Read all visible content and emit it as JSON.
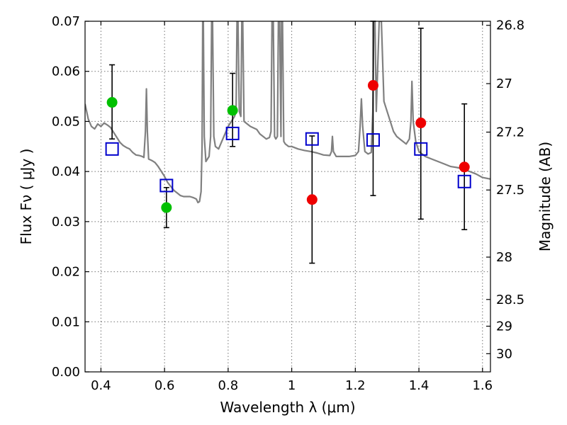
{
  "chart_data": {
    "type": "scatter",
    "xlabel": "Wavelength  λ (μm)",
    "ylabel": "Flux  Fν  ( μJy )",
    "y2label": "Magnitude (AB)",
    "xlim": [
      0.35,
      1.625
    ],
    "ylim": [
      0.0,
      0.07
    ],
    "grid": true,
    "x_ticks": [
      {
        "value": 0.4,
        "label": "0.4"
      },
      {
        "value": 0.6,
        "label": "0.6"
      },
      {
        "value": 0.8,
        "label": "0.8"
      },
      {
        "value": 1.0,
        "label": "1"
      },
      {
        "value": 1.2,
        "label": "1.2"
      },
      {
        "value": 1.4,
        "label": "1.4"
      },
      {
        "value": 1.6,
        "label": "1.6"
      }
    ],
    "y_ticks": [
      {
        "value": 0.0,
        "label": "0.00"
      },
      {
        "value": 0.01,
        "label": "0.01"
      },
      {
        "value": 0.02,
        "label": "0.02"
      },
      {
        "value": 0.03,
        "label": "0.03"
      },
      {
        "value": 0.04,
        "label": "0.04"
      },
      {
        "value": 0.05,
        "label": "0.05"
      },
      {
        "value": 0.06,
        "label": "0.06"
      },
      {
        "value": 0.07,
        "label": "0.07"
      }
    ],
    "y2_ticks": [
      {
        "value": 26.8,
        "label": "26.8"
      },
      {
        "value": 27.0,
        "label": "27"
      },
      {
        "value": 27.2,
        "label": "27.2"
      },
      {
        "value": 27.5,
        "label": "27.5"
      },
      {
        "value": 28.0,
        "label": "28"
      },
      {
        "value": 28.5,
        "label": "28.5"
      },
      {
        "value": 29.0,
        "label": "29"
      },
      {
        "value": 30.0,
        "label": "30"
      }
    ],
    "template_spectrum": {
      "color": "#808080",
      "points": [
        [
          0.35,
          0.0535
        ],
        [
          0.36,
          0.0505
        ],
        [
          0.37,
          0.049
        ],
        [
          0.38,
          0.0485
        ],
        [
          0.39,
          0.0495
        ],
        [
          0.4,
          0.049
        ],
        [
          0.41,
          0.0497
        ],
        [
          0.42,
          0.0493
        ],
        [
          0.43,
          0.0488
        ],
        [
          0.44,
          0.0478
        ],
        [
          0.45,
          0.0468
        ],
        [
          0.46,
          0.0458
        ],
        [
          0.47,
          0.0452
        ],
        [
          0.48,
          0.0448
        ],
        [
          0.49,
          0.0445
        ],
        [
          0.5,
          0.0438
        ],
        [
          0.51,
          0.0433
        ],
        [
          0.52,
          0.0432
        ],
        [
          0.53,
          0.043
        ],
        [
          0.535,
          0.0428
        ],
        [
          0.54,
          0.048
        ],
        [
          0.543,
          0.0565
        ],
        [
          0.546,
          0.048
        ],
        [
          0.55,
          0.0425
        ],
        [
          0.56,
          0.0422
        ],
        [
          0.57,
          0.0418
        ],
        [
          0.58,
          0.041
        ],
        [
          0.59,
          0.04
        ],
        [
          0.6,
          0.039
        ],
        [
          0.61,
          0.0378
        ],
        [
          0.62,
          0.037
        ],
        [
          0.63,
          0.0362
        ],
        [
          0.64,
          0.0357
        ],
        [
          0.65,
          0.0352
        ],
        [
          0.66,
          0.035
        ],
        [
          0.67,
          0.035
        ],
        [
          0.68,
          0.035
        ],
        [
          0.69,
          0.0348
        ],
        [
          0.7,
          0.0345
        ],
        [
          0.705,
          0.0338
        ],
        [
          0.71,
          0.034
        ],
        [
          0.715,
          0.036
        ],
        [
          0.718,
          0.045
        ],
        [
          0.72,
          0.07
        ],
        [
          0.722,
          0.07
        ],
        [
          0.725,
          0.047
        ],
        [
          0.73,
          0.042
        ],
        [
          0.74,
          0.043
        ],
        [
          0.745,
          0.047
        ],
        [
          0.748,
          0.07
        ],
        [
          0.751,
          0.07
        ],
        [
          0.755,
          0.047
        ],
        [
          0.76,
          0.045
        ],
        [
          0.77,
          0.0445
        ],
        [
          0.78,
          0.046
        ],
        [
          0.79,
          0.0475
        ],
        [
          0.8,
          0.049
        ],
        [
          0.81,
          0.05
        ],
        [
          0.82,
          0.051
        ],
        [
          0.825,
          0.052
        ],
        [
          0.828,
          0.07
        ],
        [
          0.831,
          0.07
        ],
        [
          0.835,
          0.052
        ],
        [
          0.84,
          0.051
        ],
        [
          0.843,
          0.07
        ],
        [
          0.846,
          0.07
        ],
        [
          0.85,
          0.05
        ],
        [
          0.86,
          0.0495
        ],
        [
          0.87,
          0.049
        ],
        [
          0.88,
          0.0487
        ],
        [
          0.89,
          0.0484
        ],
        [
          0.9,
          0.0475
        ],
        [
          0.91,
          0.047
        ],
        [
          0.92,
          0.0465
        ],
        [
          0.93,
          0.0468
        ],
        [
          0.935,
          0.048
        ],
        [
          0.938,
          0.07
        ],
        [
          0.942,
          0.07
        ],
        [
          0.946,
          0.047
        ],
        [
          0.95,
          0.0465
        ],
        [
          0.955,
          0.047
        ],
        [
          0.958,
          0.07
        ],
        [
          0.962,
          0.07
        ],
        [
          0.966,
          0.047
        ],
        [
          0.968,
          0.07
        ],
        [
          0.971,
          0.07
        ],
        [
          0.975,
          0.046
        ],
        [
          0.98,
          0.0455
        ],
        [
          0.99,
          0.045
        ],
        [
          1.0,
          0.045
        ],
        [
          1.02,
          0.0445
        ],
        [
          1.04,
          0.0442
        ],
        [
          1.06,
          0.044
        ],
        [
          1.08,
          0.0437
        ],
        [
          1.1,
          0.0433
        ],
        [
          1.12,
          0.0432
        ],
        [
          1.125,
          0.044
        ],
        [
          1.128,
          0.047
        ],
        [
          1.131,
          0.044
        ],
        [
          1.14,
          0.043
        ],
        [
          1.16,
          0.043
        ],
        [
          1.18,
          0.043
        ],
        [
          1.2,
          0.0432
        ],
        [
          1.21,
          0.044
        ],
        [
          1.215,
          0.049
        ],
        [
          1.219,
          0.0545
        ],
        [
          1.223,
          0.049
        ],
        [
          1.23,
          0.044
        ],
        [
          1.24,
          0.0435
        ],
        [
          1.25,
          0.0438
        ],
        [
          1.255,
          0.052
        ],
        [
          1.258,
          0.07
        ],
        [
          1.262,
          0.07
        ],
        [
          1.266,
          0.052
        ],
        [
          1.275,
          0.07
        ],
        [
          1.282,
          0.07
        ],
        [
          1.29,
          0.054
        ],
        [
          1.3,
          0.052
        ],
        [
          1.31,
          0.05
        ],
        [
          1.32,
          0.048
        ],
        [
          1.33,
          0.047
        ],
        [
          1.34,
          0.0465
        ],
        [
          1.35,
          0.046
        ],
        [
          1.36,
          0.0455
        ],
        [
          1.37,
          0.0465
        ],
        [
          1.375,
          0.05
        ],
        [
          1.378,
          0.058
        ],
        [
          1.382,
          0.05
        ],
        [
          1.39,
          0.046
        ],
        [
          1.4,
          0.044
        ],
        [
          1.42,
          0.043
        ],
        [
          1.44,
          0.0425
        ],
        [
          1.46,
          0.042
        ],
        [
          1.48,
          0.0415
        ],
        [
          1.5,
          0.041
        ],
        [
          1.52,
          0.0408
        ],
        [
          1.54,
          0.0405
        ],
        [
          1.56,
          0.04
        ],
        [
          1.58,
          0.0395
        ],
        [
          1.6,
          0.0388
        ],
        [
          1.625,
          0.0385
        ]
      ]
    },
    "model_fluxes": {
      "marker": "open-square",
      "color": "#0000cc",
      "points": [
        [
          0.435,
          0.0445
        ],
        [
          0.606,
          0.0372
        ],
        [
          0.814,
          0.0476
        ],
        [
          1.064,
          0.0465
        ],
        [
          1.256,
          0.0463
        ],
        [
          1.406,
          0.0445
        ],
        [
          1.543,
          0.038
        ]
      ]
    },
    "optical_observations": {
      "marker": "filled-circle",
      "color": "#00c000",
      "points": [
        {
          "x": 0.435,
          "y": 0.0538,
          "err": [
            0.0465,
            0.0613
          ]
        },
        {
          "x": 0.606,
          "y": 0.0328,
          "err": [
            0.0288,
            0.0368
          ]
        },
        {
          "x": 0.814,
          "y": 0.0522,
          "err": [
            0.045,
            0.0596
          ]
        }
      ]
    },
    "nir_observations": {
      "marker": "filled-circle",
      "color": "#ee0000",
      "points": [
        {
          "x": 1.064,
          "y": 0.0344,
          "err": [
            0.0217,
            0.0471
          ]
        },
        {
          "x": 1.256,
          "y": 0.0572,
          "err": [
            0.0352,
            0.07
          ]
        },
        {
          "x": 1.406,
          "y": 0.0497,
          "err": [
            0.0305,
            0.0686
          ]
        },
        {
          "x": 1.543,
          "y": 0.0409,
          "err": [
            0.0284,
            0.0535
          ]
        }
      ]
    }
  }
}
